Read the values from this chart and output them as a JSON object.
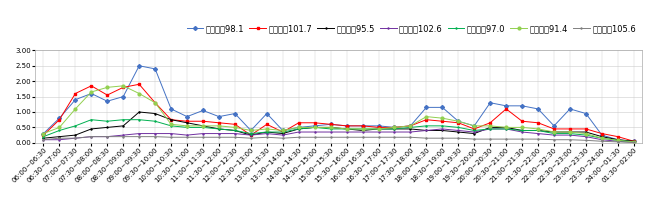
{
  "x_labels": [
    "06:00~06:30",
    "06:30~07:00",
    "07:00~07:30",
    "07:30~08:00",
    "08:00~08:30",
    "08:30~09:00",
    "09:00~09:30",
    "09:30~10:00",
    "10:00~10:30",
    "10:30~11:00",
    "11:00~11:30",
    "11:30~12:00",
    "12:00~12:30",
    "12:30~13:00",
    "13:00~13:30",
    "13:30~14:00",
    "14:00~14:30",
    "14:30~15:00",
    "15:00~15:30",
    "15:30~16:00",
    "16:00~16:30",
    "16:30~17:00",
    "17:00~17:30",
    "17:30~18:00",
    "18:00~18:30",
    "18:30~19:00",
    "19:00~19:30",
    "19:30~20:00",
    "20:00~20:30",
    "20:30~21:00",
    "21:00~21:30",
    "21:30~22:00",
    "22:00~22:30",
    "22:30~23:00",
    "23:00~23:30",
    "23:30~24:00",
    "24:00~01:30",
    "01:30~02:00"
  ],
  "series": [
    {
      "name": "四川新闻98.1",
      "color": "#4472C4",
      "marker": "D",
      "values": [
        0.3,
        0.8,
        1.4,
        1.6,
        1.35,
        1.5,
        2.5,
        2.4,
        1.1,
        0.85,
        1.05,
        0.85,
        0.95,
        0.4,
        0.95,
        0.4,
        0.5,
        0.55,
        0.6,
        0.55,
        0.55,
        0.55,
        0.5,
        0.55,
        1.15,
        1.15,
        0.7,
        0.55,
        1.3,
        1.2,
        1.2,
        1.1,
        0.55,
        1.1,
        0.95,
        0.25,
        0.1,
        0.05
      ]
    },
    {
      "name": "四川交通101.7",
      "color": "#FF0000",
      "marker": "s",
      "values": [
        0.25,
        0.75,
        1.6,
        1.85,
        1.55,
        1.8,
        1.9,
        1.3,
        0.75,
        0.7,
        0.7,
        0.65,
        0.6,
        0.25,
        0.6,
        0.35,
        0.65,
        0.65,
        0.6,
        0.55,
        0.55,
        0.5,
        0.5,
        0.55,
        0.75,
        0.7,
        0.65,
        0.45,
        0.65,
        1.1,
        0.7,
        0.65,
        0.45,
        0.45,
        0.45,
        0.3,
        0.2,
        0.05
      ]
    },
    {
      "name": "岯江音乂95.5",
      "color": "#000000",
      "marker": "+",
      "values": [
        0.15,
        0.2,
        0.25,
        0.45,
        0.5,
        0.55,
        1.0,
        0.95,
        0.75,
        0.65,
        0.55,
        0.45,
        0.4,
        0.25,
        0.35,
        0.3,
        0.45,
        0.5,
        0.5,
        0.45,
        0.4,
        0.45,
        0.45,
        0.45,
        0.4,
        0.4,
        0.35,
        0.3,
        0.5,
        0.5,
        0.4,
        0.4,
        0.35,
        0.35,
        0.35,
        0.2,
        0.1,
        0.05
      ]
    },
    {
      "name": "城市之音102.6",
      "color": "#7030A0",
      "marker": "+",
      "values": [
        0.1,
        0.1,
        0.15,
        0.2,
        0.2,
        0.25,
        0.3,
        0.3,
        0.3,
        0.25,
        0.3,
        0.3,
        0.3,
        0.25,
        0.3,
        0.25,
        0.35,
        0.35,
        0.35,
        0.35,
        0.35,
        0.35,
        0.35,
        0.35,
        0.4,
        0.45,
        0.4,
        0.35,
        0.45,
        0.45,
        0.35,
        0.3,
        0.25,
        0.25,
        0.2,
        0.1,
        0.05,
        0.02
      ]
    },
    {
      "name": "四川旅最97.0",
      "color": "#00B050",
      "marker": "+",
      "values": [
        0.2,
        0.4,
        0.55,
        0.75,
        0.7,
        0.75,
        0.75,
        0.7,
        0.55,
        0.5,
        0.5,
        0.45,
        0.4,
        0.3,
        0.35,
        0.35,
        0.45,
        0.5,
        0.45,
        0.45,
        0.45,
        0.45,
        0.45,
        0.5,
        0.55,
        0.55,
        0.5,
        0.4,
        0.45,
        0.45,
        0.4,
        0.4,
        0.3,
        0.3,
        0.25,
        0.15,
        0.08,
        0.03
      ]
    },
    {
      "name": "成都交通91.4",
      "color": "#92D050",
      "marker": "o",
      "values": [
        0.3,
        0.5,
        1.1,
        1.65,
        1.8,
        1.85,
        1.6,
        1.3,
        0.6,
        0.55,
        0.55,
        0.55,
        0.5,
        0.4,
        0.45,
        0.4,
        0.5,
        0.5,
        0.5,
        0.45,
        0.45,
        0.45,
        0.5,
        0.55,
        0.85,
        0.8,
        0.7,
        0.55,
        0.55,
        0.5,
        0.5,
        0.45,
        0.35,
        0.35,
        0.3,
        0.15,
        0.08,
        0.03
      ]
    },
    {
      "name": "成都经济105.6",
      "color": "#808080",
      "marker": "+",
      "values": [
        0.1,
        0.15,
        0.15,
        0.2,
        0.2,
        0.2,
        0.2,
        0.2,
        0.18,
        0.18,
        0.18,
        0.18,
        0.18,
        0.15,
        0.18,
        0.15,
        0.18,
        0.18,
        0.18,
        0.18,
        0.18,
        0.18,
        0.18,
        0.18,
        0.15,
        0.15,
        0.15,
        0.12,
        0.12,
        0.12,
        0.12,
        0.12,
        0.1,
        0.1,
        0.08,
        0.05,
        0.03,
        0.01
      ]
    }
  ],
  "ylim": [
    0.0,
    3.0
  ],
  "yticks": [
    0.0,
    0.5,
    1.0,
    1.5,
    2.0,
    2.5,
    3.0
  ],
  "background_color": "#FFFFFF",
  "grid_color": "#CCCCCC",
  "fontsize_legend": 6.0,
  "fontsize_tick": 5.0
}
